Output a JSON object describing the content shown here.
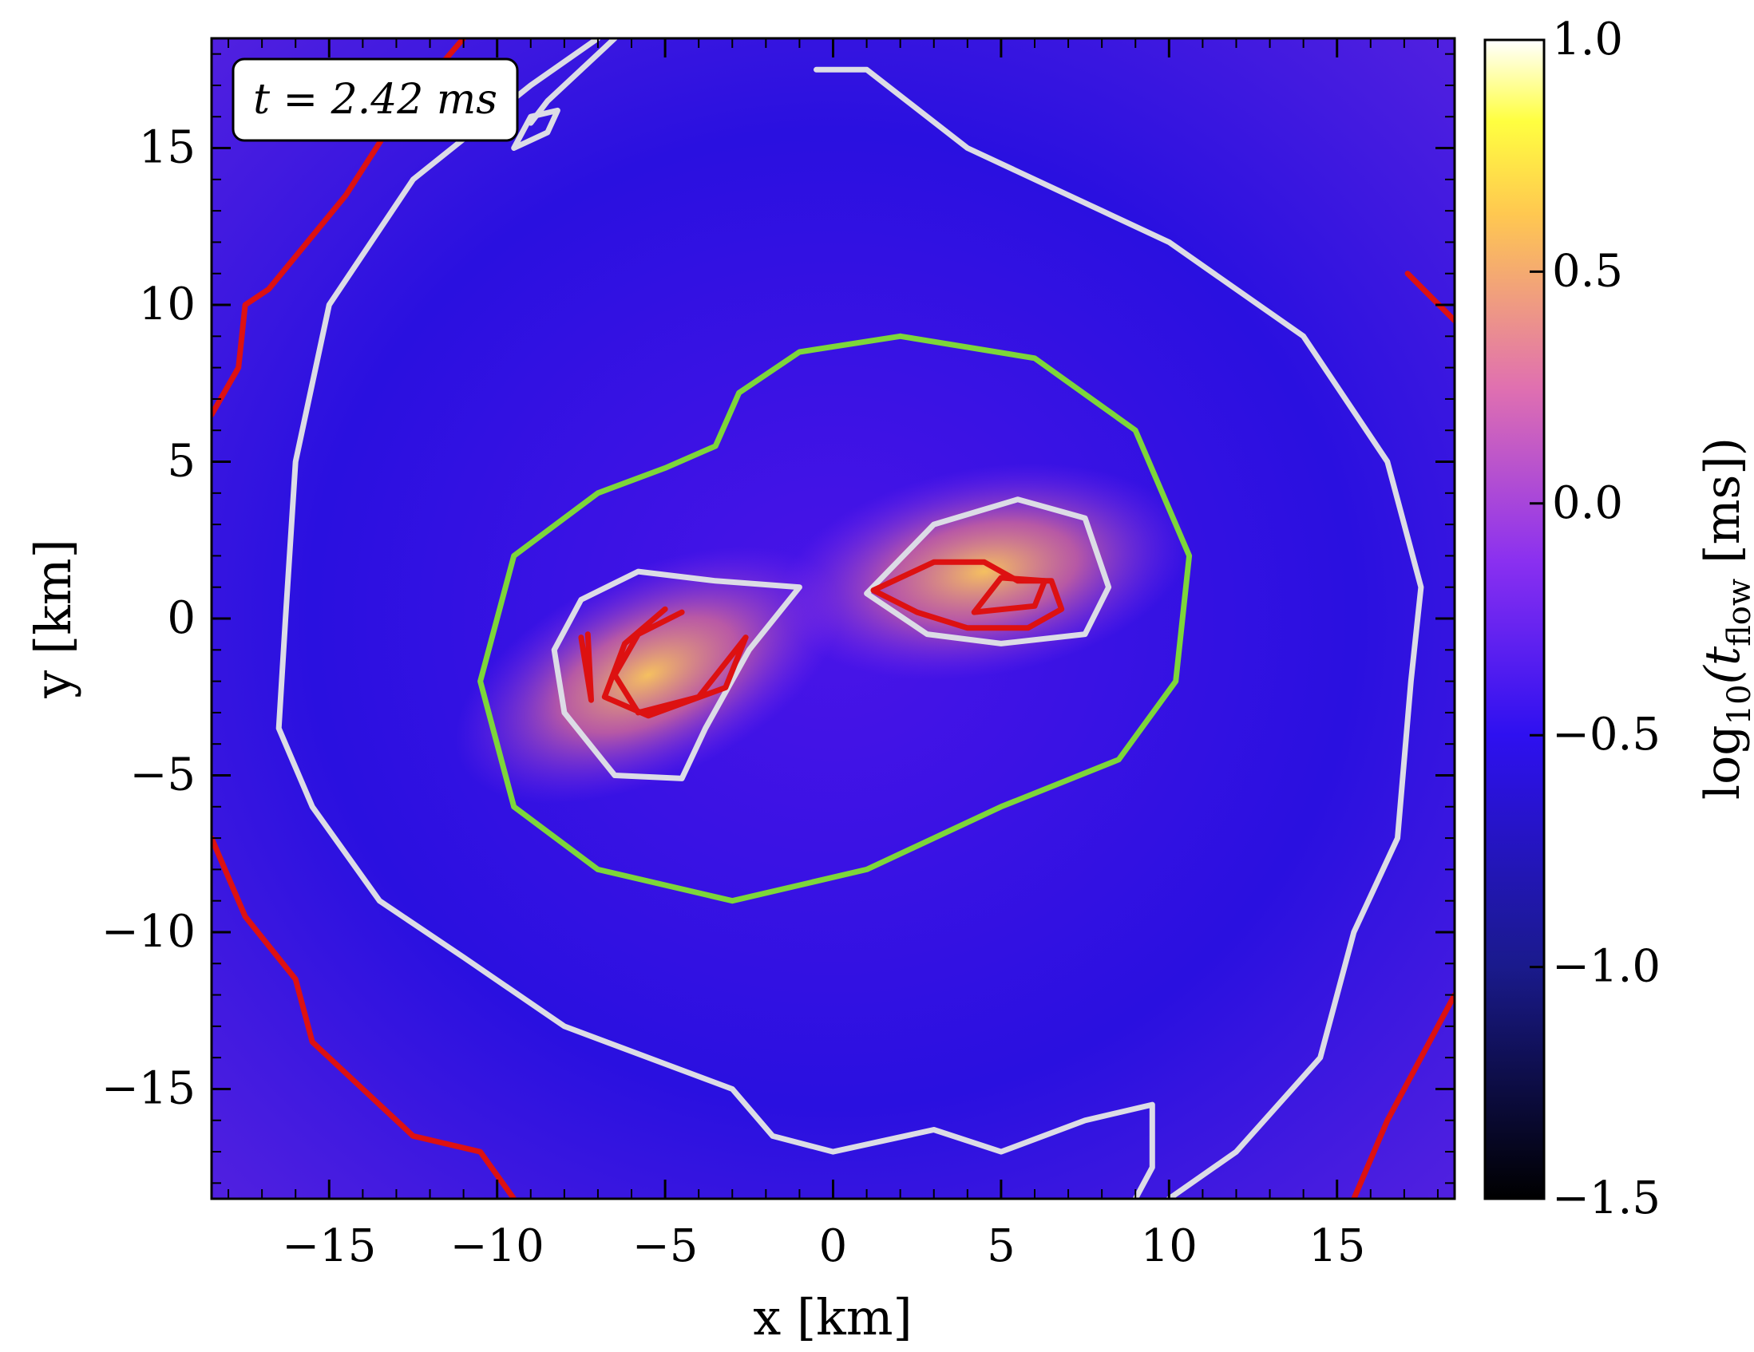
{
  "chart_data": {
    "type": "heatmap",
    "title": "",
    "xlabel": "x [km]",
    "ylabel": "y [km]",
    "xlim": [
      -18.5,
      18.5
    ],
    "ylim": [
      -18.5,
      18.5
    ],
    "x_ticks": [
      -15,
      -10,
      -5,
      0,
      5,
      10,
      15
    ],
    "y_ticks": [
      -15,
      -10,
      -5,
      0,
      5,
      10,
      15
    ],
    "x_tick_labels": [
      "−15",
      "−10",
      "−5",
      "0",
      "5",
      "10",
      "15"
    ],
    "y_tick_labels": [
      "−15",
      "−10",
      "−5",
      "0",
      "5",
      "10",
      "15"
    ],
    "colorbar": {
      "label_main": "log",
      "label_sub": "10",
      "label_arg": "(t",
      "label_arg_sub": "flow",
      "label_unit": " [ms])",
      "range": [
        -1.5,
        1.0
      ],
      "ticks": [
        1.0,
        0.5,
        0.0,
        -0.5,
        -1.0,
        -1.5
      ],
      "tick_labels": [
        "1.0",
        "0.5",
        "0.0",
        "−0.5",
        "−1.0",
        "−1.5"
      ],
      "colormap": "gnuplot2"
    },
    "annotation": "t = 2.42 ms",
    "background_level": -0.95,
    "hotspots": [
      {
        "x": -5.5,
        "y": -1.8,
        "peak": 0.45
      },
      {
        "x": 4.5,
        "y": 1.5,
        "peak": 0.4
      }
    ],
    "contours": [
      {
        "color": "#7dd63a",
        "name": "green",
        "points": [
          [
            2,
            9
          ],
          [
            6,
            8.3
          ],
          [
            9,
            6
          ],
          [
            10.6,
            2
          ],
          [
            10.2,
            -2
          ],
          [
            8.5,
            -4.5
          ],
          [
            5,
            -6
          ],
          [
            1,
            -8
          ],
          [
            -3,
            -9
          ],
          [
            -7,
            -8
          ],
          [
            -9.5,
            -6
          ],
          [
            -10.5,
            -2
          ],
          [
            -9.5,
            2
          ],
          [
            -7,
            4
          ],
          [
            -5,
            4.8
          ],
          [
            -3.5,
            5.5
          ],
          [
            -2.8,
            7.2
          ],
          [
            -1,
            8.5
          ],
          [
            2,
            9
          ]
        ]
      },
      {
        "color": "#dcdce6",
        "name": "grey-left-lobe",
        "points": [
          [
            -1,
            1
          ],
          [
            -2.5,
            -1
          ],
          [
            -3.8,
            -3.5
          ],
          [
            -4.5,
            -5.1
          ],
          [
            -6.5,
            -5
          ],
          [
            -8,
            -3
          ],
          [
            -8.3,
            -1
          ],
          [
            -7.5,
            0.6
          ],
          [
            -5.8,
            1.5
          ],
          [
            -3.5,
            1.2
          ],
          [
            -1,
            1
          ]
        ]
      },
      {
        "color": "#dcdce6",
        "name": "grey-right-lobe",
        "points": [
          [
            1,
            0.8
          ],
          [
            2.8,
            -0.5
          ],
          [
            5,
            -0.8
          ],
          [
            7.5,
            -0.5
          ],
          [
            8.2,
            1
          ],
          [
            7.5,
            3.2
          ],
          [
            5.5,
            3.8
          ],
          [
            3,
            3
          ],
          [
            1,
            0.8
          ]
        ]
      },
      {
        "color": "#dcdce6",
        "name": "grey-outer",
        "points": [
          [
            -7,
            18.5
          ],
          [
            -9,
            17
          ],
          [
            -12.5,
            14
          ],
          [
            -15,
            10
          ],
          [
            -16,
            5
          ],
          [
            -16.3,
            0
          ],
          [
            -16.5,
            -3.5
          ],
          [
            -15.5,
            -6
          ],
          [
            -13.5,
            -9
          ],
          [
            -11,
            -10.8
          ],
          [
            -8,
            -13
          ],
          [
            -3,
            -15
          ],
          [
            -1.8,
            -16.5
          ],
          [
            0,
            -17
          ],
          [
            3,
            -16.3
          ],
          [
            5,
            -17
          ],
          [
            7.5,
            -16
          ],
          [
            9.5,
            -15.5
          ],
          [
            9.5,
            -17.5
          ],
          [
            9,
            -18.5
          ]
        ]
      },
      {
        "color": "#dcdce6",
        "name": "grey-outer-right",
        "points": [
          [
            -0.5,
            17.5
          ],
          [
            1,
            17.5
          ],
          [
            4,
            15
          ],
          [
            8,
            13
          ],
          [
            10,
            12
          ],
          [
            14,
            9
          ],
          [
            16.5,
            5
          ],
          [
            17.5,
            1
          ],
          [
            17.2,
            -2
          ],
          [
            16.8,
            -7
          ],
          [
            15.5,
            -10
          ],
          [
            14.5,
            -14
          ],
          [
            12,
            -17
          ],
          [
            10,
            -18.5
          ]
        ]
      },
      {
        "color": "#dcdce6",
        "name": "grey-small",
        "points": [
          [
            -9.5,
            15
          ],
          [
            -8.5,
            15.5
          ],
          [
            -8.2,
            16.2
          ],
          [
            -9,
            16
          ],
          [
            -9.5,
            15
          ]
        ]
      },
      {
        "color": "#dcdce6",
        "name": "grey-top",
        "points": [
          [
            -9,
            15.8
          ],
          [
            -8.5,
            16.5
          ],
          [
            -7.5,
            17.5
          ],
          [
            -6.5,
            18.5
          ]
        ]
      },
      {
        "color": "#dd1111",
        "name": "red-left-inner",
        "points": [
          [
            -4.5,
            0.2
          ],
          [
            -5.8,
            -0.5
          ],
          [
            -6.5,
            -1.8
          ],
          [
            -5.8,
            -3
          ],
          [
            -4,
            -2.5
          ],
          [
            -2.6,
            -0.6
          ],
          [
            -3.2,
            -2.2
          ],
          [
            -5.5,
            -3.1
          ],
          [
            -6.8,
            -2.5
          ],
          [
            -6.2,
            -0.8
          ],
          [
            -5,
            0.3
          ]
        ]
      },
      {
        "color": "#dd1111",
        "name": "red-left-loop",
        "points": [
          [
            -7.5,
            -0.6
          ],
          [
            -7.2,
            -2.6
          ],
          [
            -7.3,
            -0.5
          ]
        ]
      },
      {
        "color": "#dd1111",
        "name": "red-right-inner",
        "points": [
          [
            1.2,
            0.9
          ],
          [
            3,
            1.8
          ],
          [
            4.5,
            1.8
          ],
          [
            5.5,
            1.2
          ],
          [
            6.5,
            1.2
          ],
          [
            6.8,
            0.3
          ],
          [
            5.8,
            -0.3
          ],
          [
            4,
            -0.3
          ],
          [
            2.5,
            0.2
          ],
          [
            1.2,
            0.9
          ]
        ]
      },
      {
        "color": "#dd1111",
        "name": "red-right-loop",
        "points": [
          [
            4.2,
            0.2
          ],
          [
            5,
            1.3
          ],
          [
            6.3,
            1.2
          ],
          [
            6,
            0.4
          ],
          [
            4.2,
            0.2
          ]
        ]
      },
      {
        "color": "#dd1111",
        "name": "red-left-top",
        "points": [
          [
            -18.5,
            6.5
          ],
          [
            -17.7,
            8
          ],
          [
            -17.5,
            10
          ],
          [
            -16.8,
            10.5
          ],
          [
            -14.5,
            13.5
          ],
          [
            -13,
            16
          ],
          [
            -11,
            18.5
          ]
        ]
      },
      {
        "color": "#dd1111",
        "name": "red-left-bottom",
        "points": [
          [
            -18.5,
            -7
          ],
          [
            -17.5,
            -9.5
          ],
          [
            -16,
            -11.5
          ],
          [
            -15.5,
            -13.5
          ],
          [
            -14,
            -15
          ],
          [
            -12.5,
            -16.5
          ],
          [
            -10.5,
            -17
          ],
          [
            -9.5,
            -18.5
          ]
        ]
      },
      {
        "color": "#dd1111",
        "name": "red-right-top",
        "points": [
          [
            17.1,
            11
          ],
          [
            18.5,
            9.5
          ]
        ]
      },
      {
        "color": "#dd1111",
        "name": "red-right-bottom",
        "points": [
          [
            15.5,
            -18.5
          ],
          [
            16.5,
            -16
          ],
          [
            18.5,
            -12
          ]
        ]
      }
    ]
  }
}
